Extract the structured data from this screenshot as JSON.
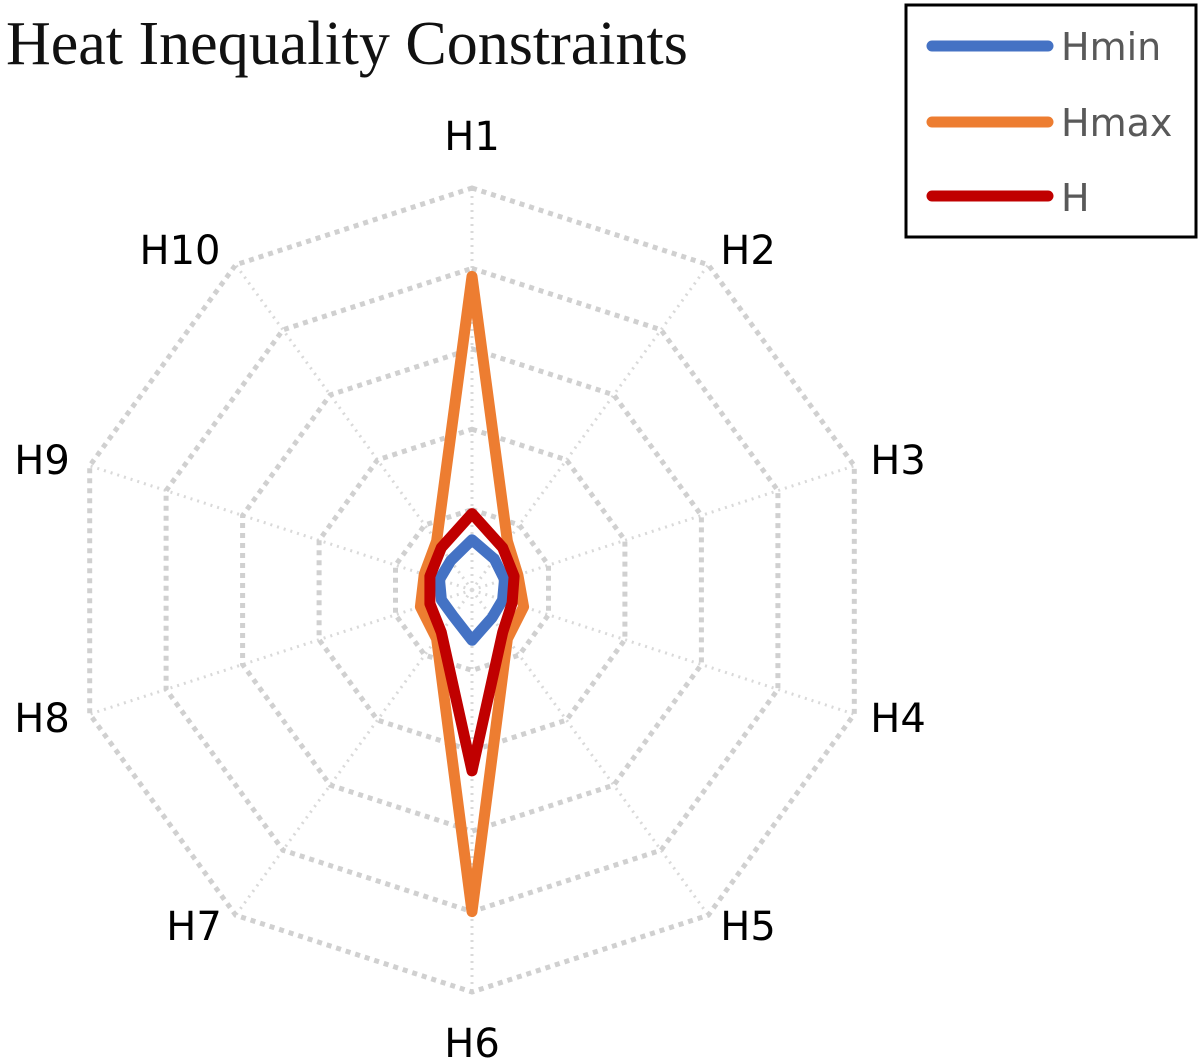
{
  "chart_data": {
    "type": "radar",
    "title": "Heat Inequality Constraints",
    "categories": [
      "H1",
      "H2",
      "H3",
      "H4",
      "H5",
      "H6",
      "H7",
      "H8",
      "H9",
      "H10"
    ],
    "rlim": [
      0,
      10
    ],
    "grid": true,
    "legend_position": "top-right",
    "series": [
      {
        "name": "Hmin",
        "color": "#4472C4",
        "values": [
          1.25,
          0.95,
          0.85,
          0.8,
          0.85,
          1.25,
          0.8,
          0.8,
          0.85,
          0.9
        ]
      },
      {
        "name": "Hmax",
        "color": "#ED7D31",
        "values": [
          7.8,
          1.5,
          1.2,
          1.35,
          1.5,
          8.0,
          1.5,
          1.35,
          1.25,
          1.5
        ]
      },
      {
        "name": "H",
        "color": "#C00000",
        "values": [
          1.9,
          1.3,
          1.1,
          1.05,
          1.3,
          4.5,
          1.3,
          1.1,
          1.1,
          1.3
        ]
      }
    ]
  }
}
